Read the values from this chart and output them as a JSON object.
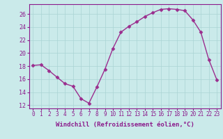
{
  "x": [
    0,
    1,
    2,
    3,
    4,
    5,
    6,
    7,
    8,
    9,
    10,
    11,
    12,
    13,
    14,
    15,
    16,
    17,
    18,
    19,
    20,
    21,
    22,
    23
  ],
  "y": [
    18.1,
    18.2,
    17.3,
    16.3,
    15.3,
    14.9,
    13.0,
    12.3,
    14.8,
    17.5,
    20.7,
    23.2,
    24.1,
    24.8,
    25.6,
    26.2,
    26.7,
    26.8,
    26.7,
    26.5,
    25.1,
    23.2,
    19.0,
    15.9
  ],
  "line_color": "#9b2d8e",
  "marker": "D",
  "markersize": 2.5,
  "linewidth": 1.0,
  "xlabel": "Windchill (Refroidissement éolien,°C)",
  "xlabel_fontsize": 6.5,
  "xlim": [
    -0.5,
    23.5
  ],
  "ylim": [
    11.5,
    27.5
  ],
  "yticks": [
    12,
    14,
    16,
    18,
    20,
    22,
    24,
    26
  ],
  "xticks": [
    0,
    1,
    2,
    3,
    4,
    5,
    6,
    7,
    8,
    9,
    10,
    11,
    12,
    13,
    14,
    15,
    16,
    17,
    18,
    19,
    20,
    21,
    22,
    23
  ],
  "bg_color": "#caeaea",
  "grid_color": "#aad4d4",
  "line_purple": "#8b1a8b",
  "tick_fontsize": 5.5,
  "ytick_fontsize": 6.0
}
